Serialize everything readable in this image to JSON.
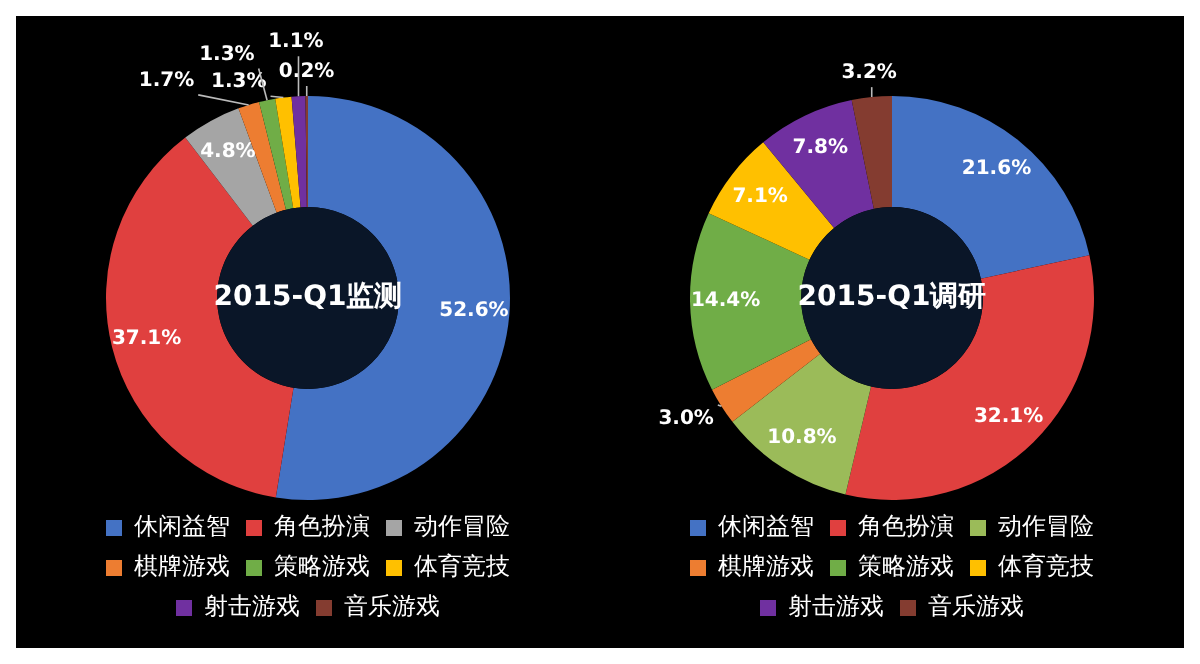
{
  "chart_data": [
    {
      "type": "donut",
      "title": "2015-Q1监测",
      "legend": "bottom",
      "categories": [
        "休闲益智",
        "角色扮演",
        "动作冒险",
        "棋牌游戏",
        "策略游戏",
        "体育竞技",
        "射击游戏",
        "音乐游戏"
      ],
      "values": [
        52.6,
        37.1,
        4.8,
        1.7,
        1.3,
        1.3,
        1.1,
        0.2
      ],
      "value_labels": [
        "52.6%",
        "37.1%",
        "4.8%",
        "1.7%",
        "1.3%",
        "1.3%",
        "1.1%",
        "0.2%"
      ],
      "colors": [
        "#4472c4",
        "#e0403f",
        "#a5a5a5",
        "#ed7d31",
        "#70ad47",
        "#ffc000",
        "#7030a0",
        "#843c30"
      ]
    },
    {
      "type": "donut",
      "title": "2015-Q1调研",
      "legend": "bottom",
      "categories": [
        "休闲益智",
        "角色扮演",
        "动作冒险",
        "棋牌游戏",
        "策略游戏",
        "体育竞技",
        "射击游戏",
        "音乐游戏"
      ],
      "values": [
        21.6,
        32.1,
        10.8,
        3.0,
        14.4,
        7.1,
        7.8,
        3.2
      ],
      "value_labels": [
        "21.6%",
        "32.1%",
        "10.8%",
        "3.0%",
        "14.4%",
        "7.1%",
        "7.8%",
        "3.2%"
      ],
      "colors": [
        "#4472c4",
        "#e0403f",
        "#9bbb59",
        "#ed7d31",
        "#70ad47",
        "#ffc000",
        "#7030a0",
        "#843c30"
      ]
    }
  ]
}
